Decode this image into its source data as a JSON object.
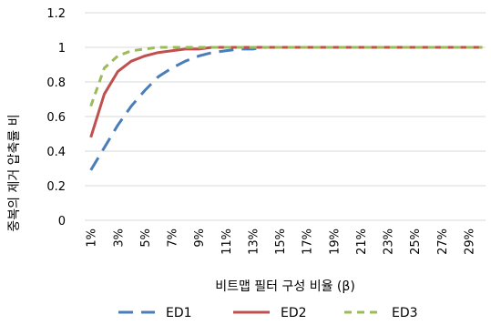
{
  "chart_data": {
    "type": "line",
    "xlabel": "비트맵 필터 구성 비율 (β)",
    "ylabel": "중복의 제거 압축률 비",
    "ylim": [
      0,
      1.2
    ],
    "yticks": [
      0,
      0.2,
      0.4,
      0.6,
      0.8,
      1,
      1.2
    ],
    "yticklabels": [
      "0",
      "0.2",
      "0.4",
      "0.6",
      "0.8",
      "1",
      "1.2"
    ],
    "x": [
      "1%",
      "2%",
      "3%",
      "4%",
      "5%",
      "6%",
      "7%",
      "8%",
      "9%",
      "10%",
      "11%",
      "12%",
      "13%",
      "14%",
      "15%",
      "16%",
      "17%",
      "18%",
      "19%",
      "20%",
      "21%",
      "22%",
      "23%",
      "24%",
      "25%",
      "26%",
      "27%",
      "28%",
      "29%",
      "30%"
    ],
    "xticklabels": [
      "1%",
      "3%",
      "5%",
      "7%",
      "9%",
      "11%",
      "13%",
      "15%",
      "17%",
      "19%",
      "21%",
      "23%",
      "25%",
      "27%",
      "29%"
    ],
    "grid": true,
    "legend": "bottom",
    "series": [
      {
        "name": "ED1",
        "color": "#4a7ebb",
        "dash": "dashed",
        "values": [
          0.29,
          0.42,
          0.55,
          0.66,
          0.75,
          0.83,
          0.88,
          0.92,
          0.95,
          0.97,
          0.98,
          0.99,
          0.99,
          1,
          1,
          1,
          1,
          1,
          1,
          1,
          1,
          1,
          1,
          1,
          1,
          1,
          1,
          1,
          1,
          1
        ]
      },
      {
        "name": "ED2",
        "color": "#c0504d",
        "dash": "solid",
        "values": [
          0.48,
          0.73,
          0.86,
          0.92,
          0.95,
          0.97,
          0.98,
          0.99,
          0.99,
          1,
          1,
          1,
          1,
          1,
          1,
          1,
          1,
          1,
          1,
          1,
          1,
          1,
          1,
          1,
          1,
          1,
          1,
          1,
          1,
          1
        ]
      },
      {
        "name": "ED3",
        "color": "#9bbb59",
        "dash": "dashed",
        "values": [
          0.66,
          0.88,
          0.95,
          0.98,
          0.99,
          1,
          1,
          1,
          1,
          1,
          1,
          1,
          1,
          1,
          1,
          1,
          1,
          1,
          1,
          1,
          1,
          1,
          1,
          1,
          1,
          1,
          1,
          1,
          1,
          1
        ]
      }
    ]
  }
}
